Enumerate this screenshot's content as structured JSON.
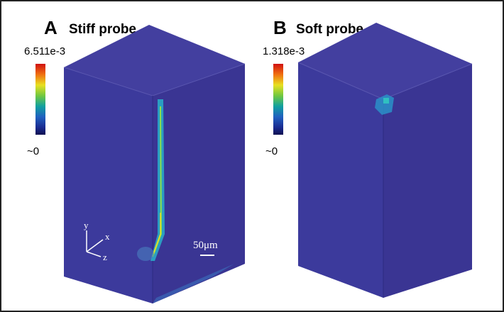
{
  "panels": [
    {
      "letter": "A",
      "title": "Stiff probe",
      "colorbar": {
        "max_label": "6.511e-3",
        "min_label": "~0"
      }
    },
    {
      "letter": "B",
      "title": "Soft probe",
      "colorbar": {
        "max_label": "1.318e-3",
        "min_label": "~0"
      }
    }
  ],
  "axes": {
    "x": "x",
    "y": "y",
    "z": "z"
  },
  "scale_bar": "50μm"
}
